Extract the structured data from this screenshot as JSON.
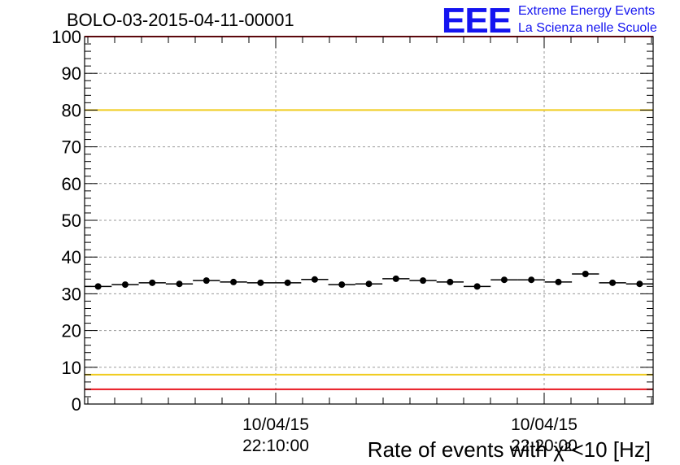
{
  "chart_data": {
    "type": "scatter",
    "title": "BOLO-03-2015-04-11-00001",
    "xlabel": "Rate of events with χ²<10 [Hz]",
    "ylabel": "",
    "ylim": [
      0,
      100
    ],
    "yticks": [
      "0",
      "10",
      "20",
      "30",
      "40",
      "50",
      "60",
      "70",
      "80",
      "90",
      "100"
    ],
    "xtick_labels": [
      {
        "date": "10/04/15",
        "time": "22:10:00"
      },
      {
        "date": "10/04/15",
        "time": "22:20:00"
      }
    ],
    "grid": true,
    "reference_lines": [
      {
        "value": 100,
        "color": "#e8141e"
      },
      {
        "value": 80,
        "color": "#f0cc1e"
      },
      {
        "value": 8,
        "color": "#f0cc1e"
      },
      {
        "value": 4,
        "color": "#e8141e"
      }
    ],
    "series": [
      {
        "values": [
          32.0,
          32.5,
          33.0,
          32.7,
          33.6,
          33.2,
          33.0,
          33.0,
          33.9,
          32.5,
          32.7,
          34.1,
          33.6,
          33.2,
          32.0,
          33.8,
          33.8,
          33.2,
          35.4,
          33.0,
          32.7
        ]
      }
    ]
  },
  "logo": {
    "letters": "EEE",
    "line1": "Extreme Energy Events",
    "line2": "La Scienza nelle Scuole",
    "color": "#1414f0"
  }
}
